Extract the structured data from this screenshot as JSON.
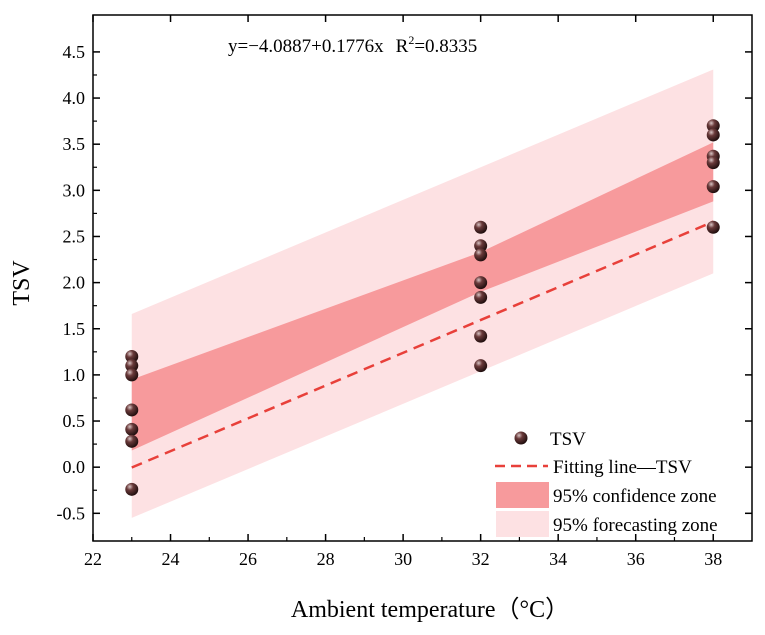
{
  "chart_data": {
    "type": "scatter",
    "title": "",
    "annotation_prefix": "y=",
    "annotation_fit": "−4.0887+0.1776x",
    "annotation_r": "R",
    "annotation_r_sup": "2",
    "annotation_r_value": "=0.8335",
    "xlabel": "Ambient temperature（°C）",
    "ylabel": "TSV",
    "xlim": [
      22,
      39
    ],
    "ylim": [
      -0.8,
      4.9
    ],
    "x_ticks": [
      22,
      24,
      26,
      28,
      30,
      32,
      34,
      36,
      38
    ],
    "x_tick_labels": [
      "22",
      "24",
      "26",
      "28",
      "30",
      "32",
      "34",
      "36",
      "38"
    ],
    "y_ticks": [
      -0.5,
      0.0,
      0.5,
      1.0,
      1.5,
      2.0,
      2.5,
      3.0,
      3.5,
      4.0,
      4.5
    ],
    "y_tick_labels": [
      "-0.5",
      "0.0",
      "0.5",
      "1.0",
      "1.5",
      "2.0",
      "2.5",
      "3.0",
      "3.5",
      "4.0",
      "4.5"
    ],
    "grid": false,
    "legend_position": "bottom-right",
    "series": [
      {
        "name": "TSV",
        "kind": "scatter",
        "points": [
          {
            "x": 23,
            "y": 1.2
          },
          {
            "x": 23,
            "y": 1.1
          },
          {
            "x": 23,
            "y": 1.0
          },
          {
            "x": 23,
            "y": 0.62
          },
          {
            "x": 23,
            "y": 0.41
          },
          {
            "x": 23,
            "y": 0.28
          },
          {
            "x": 23,
            "y": -0.24
          },
          {
            "x": 32,
            "y": 2.6
          },
          {
            "x": 32,
            "y": 2.4
          },
          {
            "x": 32,
            "y": 2.3
          },
          {
            "x": 32,
            "y": 2.0
          },
          {
            "x": 32,
            "y": 1.84
          },
          {
            "x": 32,
            "y": 1.42
          },
          {
            "x": 32,
            "y": 1.1
          },
          {
            "x": 38,
            "y": 3.7
          },
          {
            "x": 38,
            "y": 3.6
          },
          {
            "x": 38,
            "y": 3.37
          },
          {
            "x": 38,
            "y": 3.3
          },
          {
            "x": 38,
            "y": 3.04
          },
          {
            "x": 38,
            "y": 2.6
          }
        ]
      },
      {
        "name": "Fitting line—TSV",
        "kind": "line",
        "intercept": -4.0887,
        "slope": 0.1776,
        "x_range": [
          23,
          38
        ]
      },
      {
        "name": "95% confidence zone",
        "kind": "band",
        "x": [
          23,
          32,
          38
        ],
        "lower": [
          0.18,
          1.9,
          2.88
        ],
        "upper": [
          0.95,
          2.33,
          3.52
        ]
      },
      {
        "name": "95% forecasting zone",
        "kind": "band",
        "x": [
          23,
          38
        ],
        "lower": [
          -0.55,
          2.1
        ],
        "upper": [
          1.66,
          4.31
        ]
      }
    ],
    "colors": {
      "marker": "#2a1414",
      "marker_highlight": "#b89a9a",
      "fit_line": "#e8403a",
      "confidence_fill": "#f79a9c",
      "forecast_fill": "#fde1e3",
      "axis": "#000000"
    }
  }
}
